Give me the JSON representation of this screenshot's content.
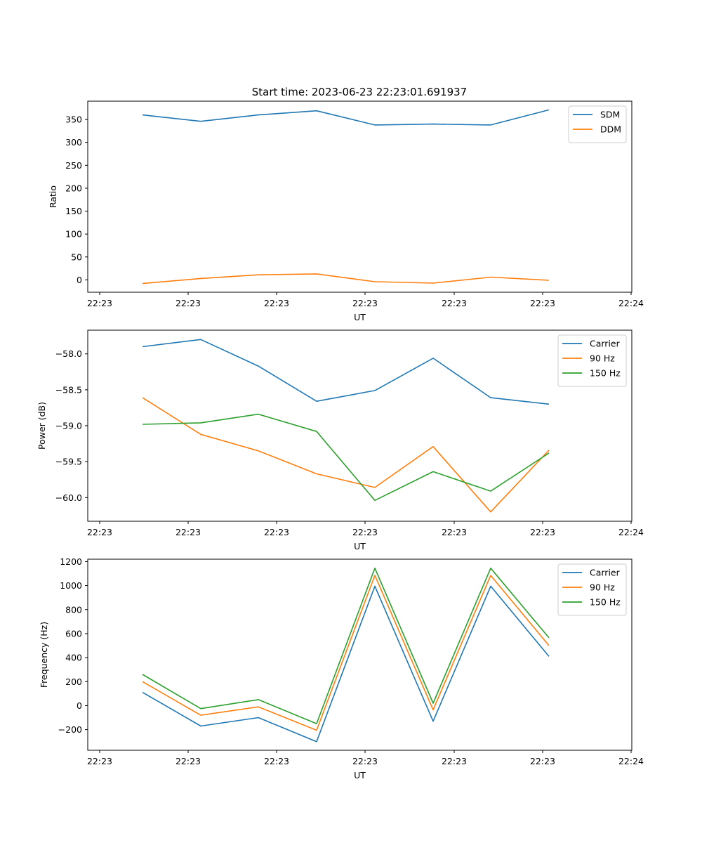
{
  "figure_title": "Start time: 2023-06-23 22:23:01.691937",
  "chart_data": [
    {
      "type": "line",
      "title": "Start time: 2023-06-23 22:23:01.691937",
      "xlabel": "UT",
      "ylabel": "Ratio",
      "x_tick_labels": [
        "22:23",
        "22:23",
        "22:23",
        "22:23",
        "22:23",
        "22:23",
        "22:24"
      ],
      "yticks": [
        0,
        50,
        100,
        150,
        200,
        250,
        300,
        350
      ],
      "ylim": [
        -27,
        390
      ],
      "legend_position": "upper right",
      "grid": false,
      "series": [
        {
          "name": "SDM",
          "color": "#1f77b4",
          "values": [
            360,
            346,
            360,
            369,
            338,
            340,
            338,
            371
          ]
        },
        {
          "name": "DDM",
          "color": "#ff7f0e",
          "values": [
            -8,
            3,
            11,
            13,
            -4,
            -7,
            6,
            -1
          ]
        }
      ]
    },
    {
      "type": "line",
      "xlabel": "UT",
      "ylabel": "Power (dB)",
      "x_tick_labels": [
        "22:23",
        "22:23",
        "22:23",
        "22:23",
        "22:23",
        "22:23",
        "22:24"
      ],
      "yticks": [
        -60.0,
        -59.5,
        -59.0,
        -58.5,
        -58.0
      ],
      "ytick_labels": [
        "−60.0",
        "−59.5",
        "−59.0",
        "−58.5",
        "−58.0"
      ],
      "ylim": [
        -60.33,
        -57.67
      ],
      "legend_position": "upper right",
      "grid": false,
      "series": [
        {
          "name": "Carrier",
          "color": "#1f77b4",
          "values": [
            -57.9,
            -57.8,
            -58.17,
            -58.66,
            -58.51,
            -58.06,
            -58.61,
            -58.7
          ]
        },
        {
          "name": "90 Hz",
          "color": "#ff7f0e",
          "values": [
            -58.61,
            -59.12,
            -59.35,
            -59.67,
            -59.86,
            -59.29,
            -60.2,
            -59.34
          ]
        },
        {
          "name": "150 Hz",
          "color": "#2ca02c",
          "values": [
            -58.98,
            -58.96,
            -58.84,
            -59.08,
            -60.04,
            -59.64,
            -59.91,
            -59.38
          ]
        }
      ]
    },
    {
      "type": "line",
      "xlabel": "UT",
      "ylabel": "Frequency (Hz)",
      "x_tick_labels": [
        "22:23",
        "22:23",
        "22:23",
        "22:23",
        "22:23",
        "22:23",
        "22:24"
      ],
      "yticks": [
        -200,
        0,
        200,
        400,
        600,
        800,
        1000,
        1200
      ],
      "ytick_labels": [
        "−200",
        "0",
        "200",
        "400",
        "600",
        "800",
        "1000",
        "1200"
      ],
      "ylim": [
        -372,
        1220
      ],
      "legend_position": "upper right",
      "grid": false,
      "series": [
        {
          "name": "Carrier",
          "color": "#1f77b4",
          "values": [
            110,
            -170,
            -100,
            -300,
            995,
            -130,
            995,
            410
          ]
        },
        {
          "name": "90 Hz",
          "color": "#ff7f0e",
          "values": [
            200,
            -80,
            -10,
            -205,
            1085,
            -35,
            1085,
            500
          ]
        },
        {
          "name": "150 Hz",
          "color": "#2ca02c",
          "values": [
            260,
            -25,
            50,
            -150,
            1145,
            20,
            1145,
            565
          ]
        }
      ]
    }
  ]
}
